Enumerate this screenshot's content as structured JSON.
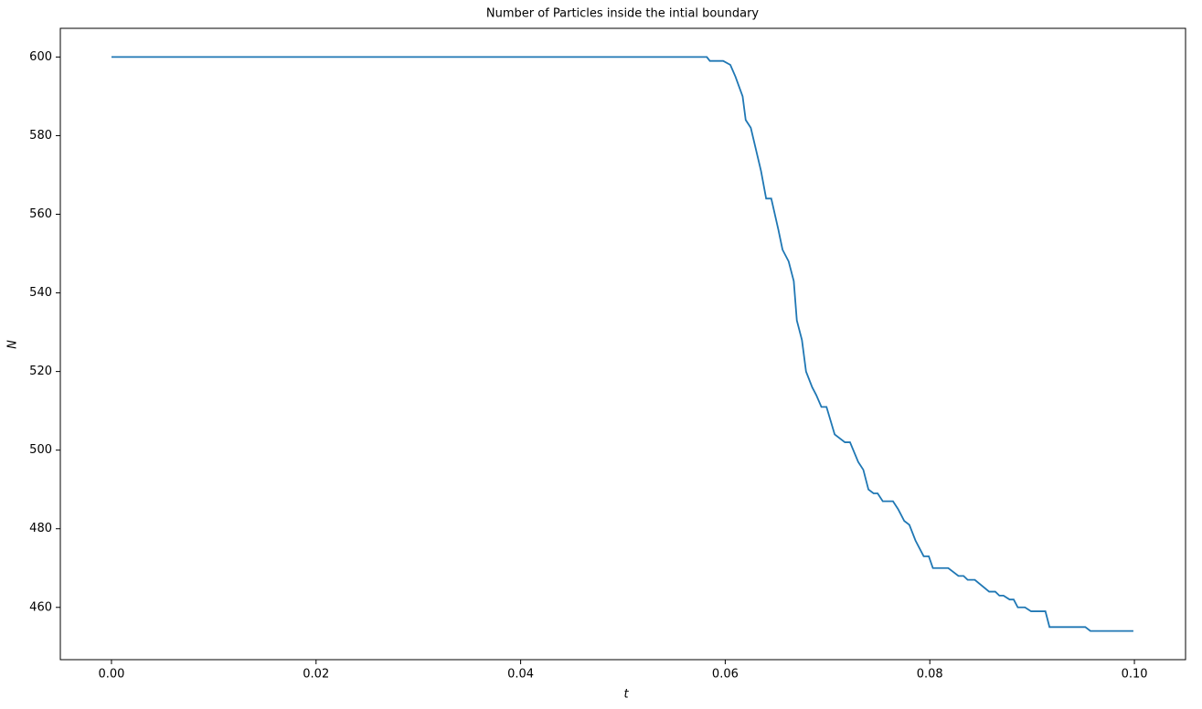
{
  "chart_data": {
    "type": "line",
    "title": "Number of Particles inside the intial boundary",
    "x_label": "t",
    "y_label": "N",
    "x": [
      0,
      0.0582,
      0.0585,
      0.0598,
      0.0605,
      0.061,
      0.0617,
      0.062,
      0.0625,
      0.0635,
      0.064,
      0.0645,
      0.0652,
      0.0656,
      0.0662,
      0.0667,
      0.067,
      0.0675,
      0.0679,
      0.0685,
      0.0689,
      0.0694,
      0.0699,
      0.0707,
      0.0717,
      0.0722,
      0.073,
      0.0735,
      0.074,
      0.0745,
      0.0749,
      0.0754,
      0.0764,
      0.0769,
      0.0775,
      0.078,
      0.0786,
      0.0794,
      0.0799,
      0.0803,
      0.0818,
      0.0828,
      0.0833,
      0.0837,
      0.0844,
      0.0858,
      0.0864,
      0.0868,
      0.0872,
      0.0878,
      0.0882,
      0.0886,
      0.0893,
      0.0899,
      0.0913,
      0.0917,
      0.0952,
      0.0957,
      0.0999
    ],
    "series": [
      {
        "color": "#1f77b4",
        "values": [
          600,
          600,
          599,
          599,
          598,
          595,
          590,
          584,
          582,
          571,
          564,
          564,
          556,
          551,
          548,
          543,
          533,
          528,
          520,
          516,
          514,
          511,
          511,
          504,
          502,
          502,
          497,
          495,
          490,
          489,
          489,
          487,
          487,
          485,
          482,
          481,
          477,
          473,
          473,
          470,
          470,
          468,
          468,
          467,
          467,
          464,
          464,
          463,
          463,
          462,
          462,
          460,
          460,
          459,
          459,
          455,
          455,
          454,
          454
        ]
      }
    ],
    "xlim": [
      -0.005,
      0.105
    ],
    "ylim": [
      446.7,
      607.3
    ],
    "xticks": [
      {
        "value": 0,
        "label": "0.00"
      },
      {
        "value": 0.02,
        "label": "0.02"
      },
      {
        "value": 0.04,
        "label": "0.04"
      },
      {
        "value": 0.06,
        "label": "0.06"
      },
      {
        "value": 0.08,
        "label": "0.08"
      },
      {
        "value": 0.1,
        "label": "0.10"
      }
    ],
    "yticks": [
      460,
      480,
      500,
      520,
      540,
      560,
      580,
      600
    ],
    "grid": false
  }
}
